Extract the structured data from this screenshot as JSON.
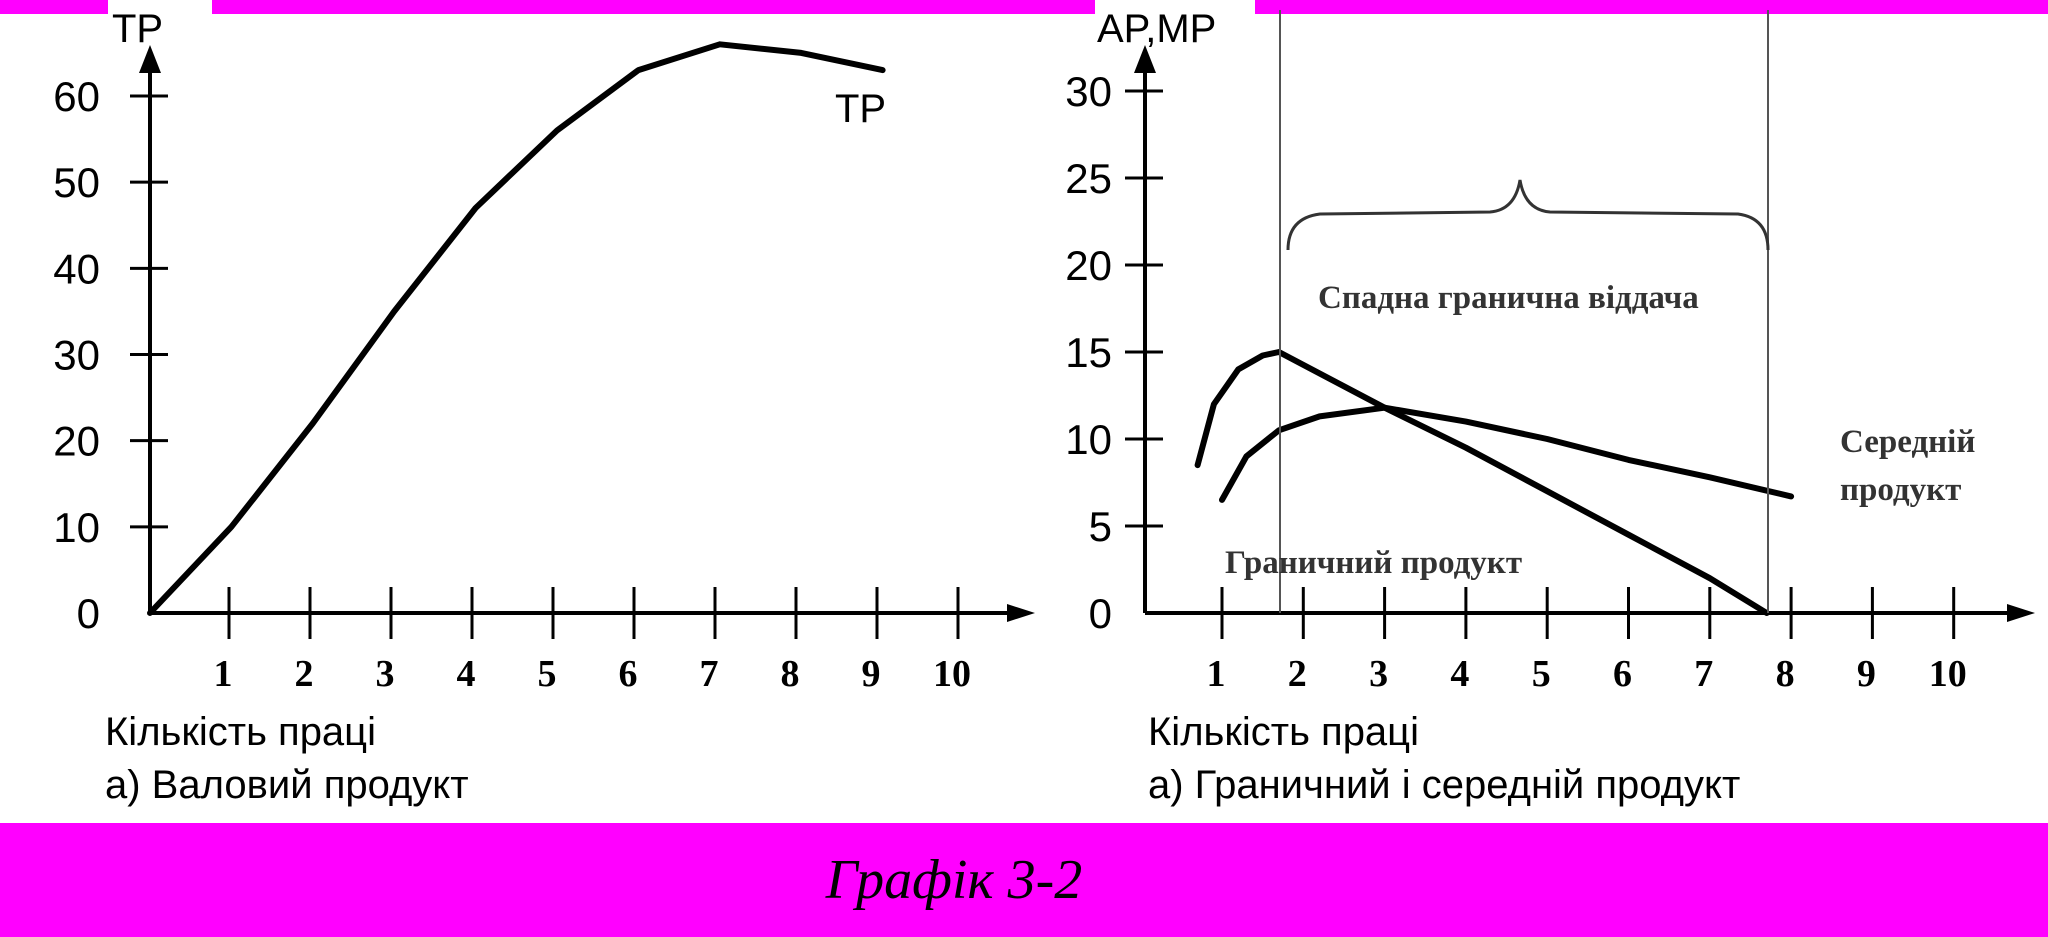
{
  "caption": "Графік 3-2",
  "chart_data": [
    {
      "type": "line",
      "ylabel": "TP",
      "xlabel": "Кількість праці",
      "subtitle": "а) Валовий продукт",
      "xlim": [
        0,
        11
      ],
      "ylim": [
        0,
        60
      ],
      "yticks": [
        0,
        10,
        20,
        30,
        40,
        50,
        60
      ],
      "xticks": [
        1,
        2,
        3,
        4,
        5,
        6,
        7,
        8,
        9,
        10
      ],
      "series": [
        {
          "name": "TP",
          "x": [
            0,
            1,
            2,
            3,
            4,
            5,
            6,
            7,
            8,
            9
          ],
          "y": [
            0,
            10,
            22,
            35,
            47,
            56,
            63,
            66,
            65,
            63
          ]
        }
      ]
    },
    {
      "type": "line",
      "ylabel": "AP,MP",
      "xlabel": "Кількість праці",
      "subtitle": "а) Граничний і середній продукт",
      "xlim": [
        0,
        11
      ],
      "ylim": [
        0,
        30
      ],
      "yticks": [
        0,
        5,
        10,
        15,
        20,
        25,
        30
      ],
      "xticks": [
        1,
        2,
        3,
        4,
        5,
        6,
        7,
        8,
        9,
        10
      ],
      "annotations": {
        "diminishing_returns": "Спадна гранична віддача",
        "average_product_line1": "Середній",
        "average_product_line2": "продукт",
        "marginal_product": "Граничний продукт"
      },
      "series": [
        {
          "name": "Граничний продукт",
          "x": [
            0.7,
            0.9,
            1.2,
            1.5,
            1.7,
            3,
            4,
            5,
            6,
            7,
            7.7
          ],
          "y": [
            8.5,
            12,
            14,
            14.8,
            15,
            11.8,
            9.5,
            7,
            4.5,
            2,
            0
          ]
        },
        {
          "name": "Середній продукт",
          "x": [
            1,
            1.3,
            1.7,
            2.2,
            3,
            4,
            5,
            6,
            7,
            8
          ],
          "y": [
            6.5,
            9,
            10.5,
            11.3,
            11.8,
            11,
            10,
            8.8,
            7.8,
            6.7
          ]
        }
      ]
    }
  ]
}
